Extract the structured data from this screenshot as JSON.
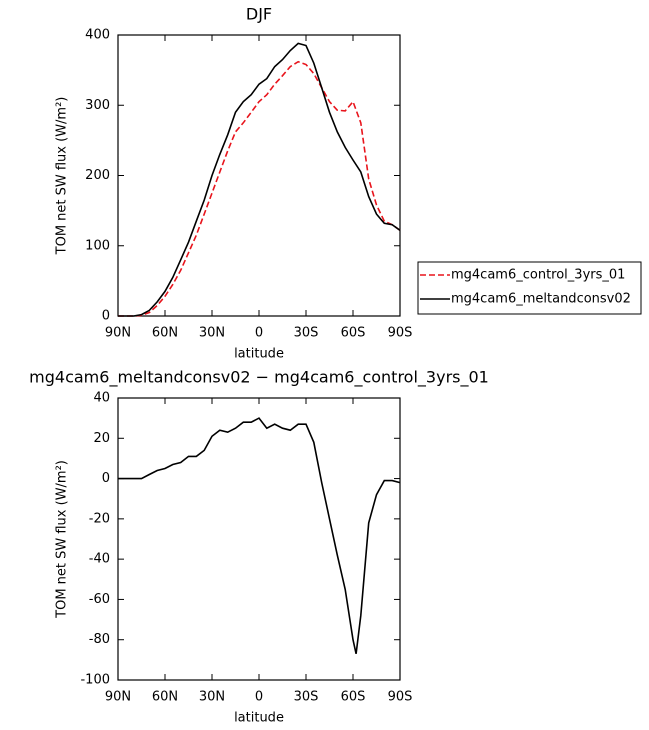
{
  "chart_data": [
    {
      "type": "line",
      "title": "DJF",
      "xlabel": "latitude",
      "ylabel": "TOM net SW flux (W/m²)",
      "x": [
        90,
        85,
        80,
        75,
        70,
        65,
        60,
        55,
        50,
        45,
        40,
        35,
        30,
        25,
        20,
        15,
        10,
        5,
        0,
        -5,
        -10,
        -15,
        -20,
        -25,
        -30,
        -35,
        -40,
        -45,
        -50,
        -55,
        -60,
        -65,
        -70,
        -75,
        -80,
        -85,
        -90
      ],
      "series": [
        {
          "name": "mg4cam6_control_3yrs_01",
          "color": "#e8141c",
          "line_style": "dashed",
          "values": [
            0,
            0,
            0,
            1,
            5,
            15,
            28,
            45,
            65,
            90,
            115,
            145,
            175,
            205,
            235,
            262,
            275,
            290,
            305,
            315,
            330,
            342,
            355,
            362,
            358,
            345,
            325,
            305,
            293,
            292,
            305,
            275,
            195,
            158,
            135,
            130,
            122
          ]
        },
        {
          "name": "mg4cam6_meltandconsv02",
          "color": "#000000",
          "line_style": "solid",
          "values": [
            0,
            0,
            0,
            2,
            8,
            20,
            35,
            55,
            80,
            105,
            135,
            165,
            200,
            230,
            258,
            290,
            305,
            315,
            330,
            338,
            355,
            365,
            378,
            388,
            385,
            360,
            325,
            290,
            262,
            240,
            222,
            205,
            170,
            145,
            132,
            130,
            122
          ]
        }
      ],
      "xlim": [
        90,
        -90
      ],
      "xticks": [
        {
          "value": 90,
          "label": "90N"
        },
        {
          "value": 60,
          "label": "60N"
        },
        {
          "value": 30,
          "label": "30N"
        },
        0,
        {
          "value": -30,
          "label": "30S"
        },
        {
          "value": -60,
          "label": "60S"
        },
        {
          "value": -90,
          "label": "90S"
        }
      ],
      "ylim": [
        0,
        400
      ],
      "yticks": [
        0,
        100,
        200,
        300,
        400
      ],
      "legend": "right"
    },
    {
      "type": "line",
      "title": "mg4cam6_meltandconsv02 − mg4cam6_control_3yrs_01",
      "xlabel": "latitude",
      "ylabel": "TOM net SW flux (W/m²)",
      "x": [
        90,
        85,
        80,
        75,
        70,
        65,
        60,
        55,
        50,
        45,
        40,
        35,
        30,
        25,
        20,
        15,
        10,
        5,
        0,
        -5,
        -10,
        -15,
        -20,
        -25,
        -30,
        -35,
        -40,
        -45,
        -50,
        -55,
        -60,
        -62,
        -65,
        -70,
        -75,
        -80,
        -85,
        -90
      ],
      "series": [
        {
          "color": "#000000",
          "line_style": "solid",
          "values": [
            0,
            0,
            0,
            0,
            2,
            4,
            5,
            7,
            8,
            11,
            11,
            14,
            21,
            24,
            23,
            25,
            28,
            28,
            30,
            25,
            27,
            25,
            24,
            27,
            27,
            18,
            -2,
            -20,
            -38,
            -55,
            -80,
            -87,
            -68,
            -22,
            -8,
            -1,
            -1,
            -2
          ]
        }
      ],
      "xlim": [
        90,
        -90
      ],
      "xticks": [
        {
          "value": 90,
          "label": "90N"
        },
        {
          "value": 60,
          "label": "60N"
        },
        {
          "value": 30,
          "label": "30N"
        },
        0,
        {
          "value": -30,
          "label": "30S"
        },
        {
          "value": -60,
          "label": "60S"
        },
        {
          "value": -90,
          "label": "90S"
        }
      ],
      "ylim": [
        -100,
        40
      ],
      "yticks": [
        -100,
        -80,
        -60,
        -40,
        -20,
        0,
        20,
        40
      ]
    }
  ]
}
